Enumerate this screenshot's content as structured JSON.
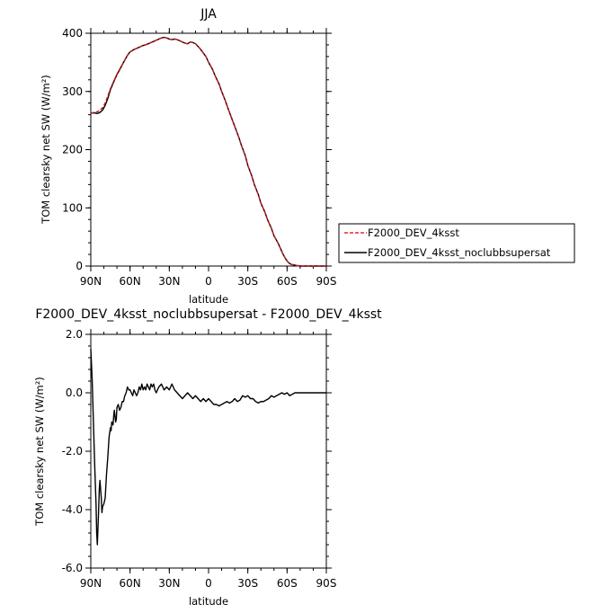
{
  "chart_data": [
    {
      "type": "line",
      "title": "JJA",
      "xlabel": "latitude",
      "ylabel": "TOM clearsky net SW (W/m²)",
      "xlim": [
        90,
        -90
      ],
      "ylim": [
        0,
        400
      ],
      "x_ticks": [
        {
          "value": 90,
          "label": "90N"
        },
        {
          "value": 60,
          "label": "60N"
        },
        {
          "value": 30,
          "label": "30N"
        },
        {
          "value": 0,
          "label": "0"
        },
        {
          "value": -30,
          "label": "30S"
        },
        {
          "value": -60,
          "label": "60S"
        },
        {
          "value": -90,
          "label": "90S"
        }
      ],
      "y_ticks": [
        {
          "value": 0,
          "label": "0"
        },
        {
          "value": 100,
          "label": "100"
        },
        {
          "value": 200,
          "label": "200"
        },
        {
          "value": 300,
          "label": "300"
        },
        {
          "value": 400,
          "label": "400"
        }
      ],
      "legend": {
        "placement": "right",
        "entries": [
          {
            "label": "F2000_DEV_4ksst",
            "color": "#e8262c",
            "dash": "dashed"
          },
          {
            "label": "F2000_DEV_4ksst_noclubbsupersat",
            "color": "#000000",
            "dash": "solid"
          }
        ]
      },
      "series": [
        {
          "name": "F2000_DEV_4ksst",
          "color": "#c8181c",
          "dash": "dashed",
          "x": [
            90,
            87,
            85,
            83,
            81,
            79,
            77,
            75,
            72,
            70,
            68,
            65,
            62,
            60,
            57,
            55,
            52,
            50,
            47,
            45,
            42,
            40,
            38,
            36,
            34,
            32,
            30,
            28,
            26,
            24,
            22,
            20,
            18,
            16,
            14,
            12,
            10,
            7,
            5,
            2,
            0,
            -3,
            -5,
            -8,
            -10,
            -13,
            -15,
            -18,
            -20,
            -23,
            -25,
            -28,
            -30,
            -33,
            -35,
            -38,
            -40,
            -43,
            -45,
            -48,
            -50,
            -53,
            -55,
            -57,
            -59,
            -61,
            -63,
            -65,
            -67,
            -70,
            -73,
            -76,
            -80,
            -85,
            -90
          ],
          "values": [
            262,
            265,
            265,
            268,
            272,
            280,
            292,
            305,
            320,
            330,
            338,
            350,
            362,
            368,
            372,
            374,
            377,
            379,
            381,
            383,
            386,
            388,
            390,
            392,
            393,
            392,
            390,
            389,
            390,
            389,
            387,
            385,
            383,
            382,
            385,
            384,
            382,
            375,
            369,
            360,
            350,
            338,
            327,
            313,
            300,
            283,
            270,
            252,
            240,
            222,
            208,
            190,
            173,
            155,
            140,
            123,
            108,
            93,
            80,
            65,
            52,
            40,
            30,
            20,
            12,
            6,
            3,
            2,
            1,
            0,
            0,
            0,
            0,
            0,
            0
          ]
        },
        {
          "name": "F2000_DEV_4ksst_noclubbsupersat",
          "color": "#000000",
          "dash": "solid",
          "x": [
            90,
            87,
            85,
            83,
            81,
            79,
            77,
            75,
            72,
            70,
            68,
            65,
            62,
            60,
            57,
            55,
            52,
            50,
            47,
            45,
            42,
            40,
            38,
            36,
            34,
            32,
            30,
            28,
            26,
            24,
            22,
            20,
            18,
            16,
            14,
            12,
            10,
            7,
            5,
            2,
            0,
            -3,
            -5,
            -8,
            -10,
            -13,
            -15,
            -18,
            -20,
            -23,
            -25,
            -28,
            -30,
            -33,
            -35,
            -38,
            -40,
            -43,
            -45,
            -48,
            -50,
            -53,
            -55,
            -57,
            -59,
            -61,
            -63,
            -65,
            -67,
            -70,
            -73,
            -76,
            -80,
            -85,
            -90
          ],
          "values": [
            263,
            263,
            262,
            264,
            268,
            276,
            288,
            303,
            319,
            329,
            337,
            350,
            362,
            368,
            372,
            374,
            377,
            379,
            381,
            383,
            386,
            388,
            390,
            392,
            393,
            392,
            390,
            389,
            390,
            389,
            387,
            385,
            383,
            382,
            385,
            384,
            382,
            375,
            369,
            360,
            350,
            338,
            327,
            313,
            300,
            283,
            270,
            252,
            240,
            222,
            208,
            190,
            173,
            155,
            140,
            123,
            108,
            93,
            80,
            65,
            52,
            40,
            30,
            20,
            12,
            6,
            3,
            2,
            1,
            0,
            0,
            0,
            0,
            0,
            0
          ]
        }
      ]
    },
    {
      "type": "line",
      "title": "F2000_DEV_4ksst_noclubbsupersat - F2000_DEV_4ksst",
      "xlabel": "latitude",
      "ylabel": "TOM clearsky net SW (W/m²)",
      "xlim": [
        90,
        -90
      ],
      "ylim": [
        -6,
        2
      ],
      "x_ticks": [
        {
          "value": 90,
          "label": "90N"
        },
        {
          "value": 60,
          "label": "60N"
        },
        {
          "value": 30,
          "label": "30N"
        },
        {
          "value": 0,
          "label": "0"
        },
        {
          "value": -30,
          "label": "30S"
        },
        {
          "value": -60,
          "label": "60S"
        },
        {
          "value": -90,
          "label": "90S"
        }
      ],
      "y_ticks": [
        {
          "value": -6,
          "label": "-6.0"
        },
        {
          "value": -4,
          "label": "-4.0"
        },
        {
          "value": -2,
          "label": "-2.0"
        },
        {
          "value": 0,
          "label": "0.0"
        },
        {
          "value": 2,
          "label": "2.0"
        }
      ],
      "series": [
        {
          "color": "#000000",
          "dash": "solid",
          "x": [
            90,
            89,
            88,
            87,
            86,
            85.5,
            85,
            84,
            83.5,
            83,
            82,
            81.5,
            81,
            80,
            79,
            78,
            77,
            76,
            75,
            74.5,
            74,
            73,
            72.5,
            72,
            71,
            70.5,
            70,
            69,
            68,
            67,
            66,
            65,
            64,
            63,
            62,
            61,
            60,
            59,
            58,
            57,
            56,
            55,
            54,
            53,
            52,
            51,
            50,
            49,
            48,
            47,
            46,
            45,
            44,
            43,
            42,
            41,
            40,
            38,
            36,
            34,
            32,
            30,
            28,
            26,
            24,
            22,
            20,
            18,
            16,
            14,
            12,
            10,
            8,
            6,
            4,
            2,
            0,
            -2,
            -4,
            -6,
            -8,
            -10,
            -12,
            -14,
            -16,
            -18,
            -20,
            -22,
            -24,
            -26,
            -28,
            -30,
            -32,
            -34,
            -36,
            -38,
            -40,
            -42,
            -44,
            -46,
            -48,
            -50,
            -52,
            -54,
            -56,
            -58,
            -60,
            -62,
            -64,
            -66,
            -68,
            -70,
            -75,
            -80,
            -85,
            -90
          ],
          "values": [
            1.5,
            0.5,
            -1.0,
            -2.5,
            -3.8,
            -4.8,
            -5.2,
            -4.0,
            -3.3,
            -3.0,
            -3.6,
            -4.1,
            -3.9,
            -3.8,
            -3.6,
            -2.8,
            -2.2,
            -1.5,
            -1.2,
            -1.3,
            -1.0,
            -1.1,
            -0.8,
            -0.6,
            -1.0,
            -0.9,
            -0.5,
            -0.4,
            -0.6,
            -0.5,
            -0.3,
            -0.3,
            -0.1,
            0.0,
            0.2,
            0.1,
            0.1,
            0.0,
            -0.1,
            0.1,
            0.0,
            -0.1,
            0.0,
            0.2,
            0.1,
            0.3,
            0.1,
            0.2,
            0.1,
            0.3,
            0.2,
            0.1,
            0.3,
            0.2,
            0.3,
            0.1,
            0.0,
            0.2,
            0.3,
            0.1,
            0.2,
            0.1,
            0.3,
            0.1,
            0.0,
            -0.1,
            -0.2,
            -0.1,
            0.0,
            -0.1,
            -0.2,
            -0.1,
            -0.2,
            -0.3,
            -0.2,
            -0.3,
            -0.2,
            -0.3,
            -0.4,
            -0.4,
            -0.45,
            -0.4,
            -0.35,
            -0.3,
            -0.35,
            -0.3,
            -0.2,
            -0.3,
            -0.25,
            -0.1,
            -0.15,
            -0.1,
            -0.2,
            -0.2,
            -0.3,
            -0.35,
            -0.3,
            -0.3,
            -0.25,
            -0.2,
            -0.1,
            -0.15,
            -0.1,
            -0.05,
            0.0,
            -0.05,
            0.0,
            -0.1,
            -0.05,
            0.0,
            0.0,
            0.0,
            0.0,
            0.0,
            0.0,
            0.0
          ]
        }
      ]
    }
  ]
}
